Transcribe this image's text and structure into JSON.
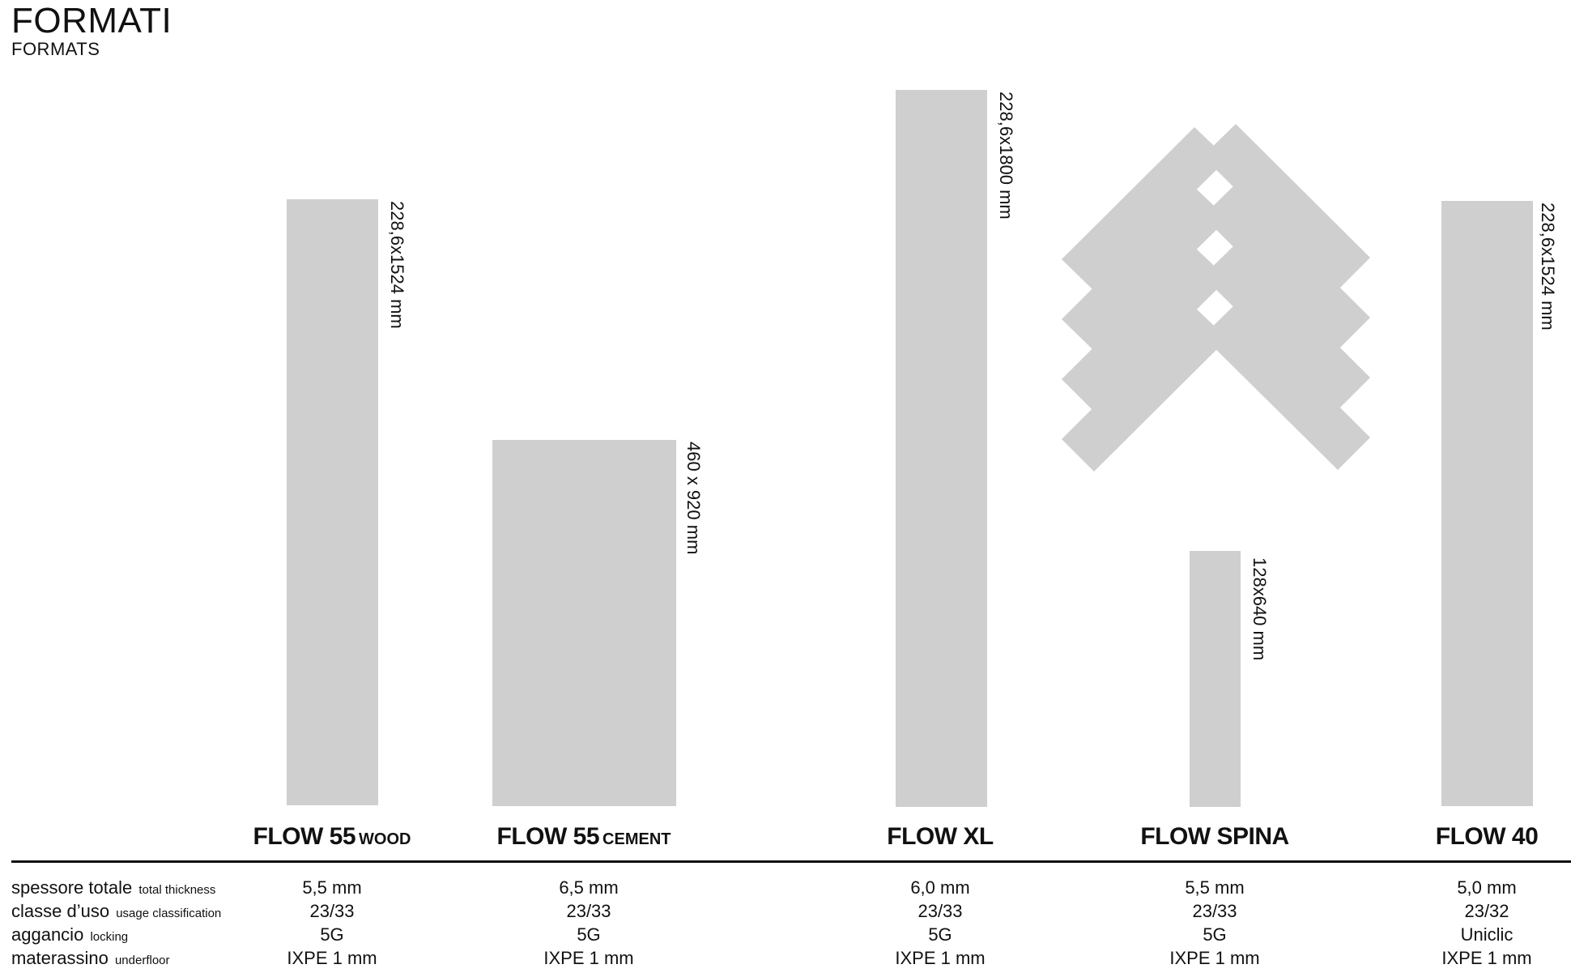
{
  "header": {
    "title": "FORMATI",
    "subtitle": "FORMATS"
  },
  "formats": [
    {
      "name": "FLOW 55",
      "variant": "WOOD",
      "dimension": "228,6x1524 mm",
      "spessore": "5,5 mm",
      "classe": "23/33",
      "aggancio": "5G",
      "materassino": "IXPE 1 mm"
    },
    {
      "name": "FLOW 55",
      "variant": "CEMENT",
      "dimension": "460 x 920 mm",
      "spessore": "6,5 mm",
      "classe": "23/33",
      "aggancio": "5G",
      "materassino": "IXPE 1 mm"
    },
    {
      "name": "FLOW XL",
      "variant": "",
      "dimension": "228,6x1800 mm",
      "spessore": "6,0 mm",
      "classe": "23/33",
      "aggancio": "5G",
      "materassino": "IXPE 1 mm"
    },
    {
      "name": "FLOW SPINA",
      "variant": "",
      "dimension": "128x640 mm",
      "spessore": "5,5 mm",
      "classe": "23/33",
      "aggancio": "5G",
      "materassino": "IXPE 1 mm"
    },
    {
      "name": "FLOW 40",
      "variant": "",
      "dimension": "228,6x1524 mm",
      "spessore": "5,0 mm",
      "classe": "23/32",
      "aggancio": "Uniclic",
      "materassino": "IXPE 1 mm"
    }
  ],
  "specs": {
    "spessore": {
      "label": "spessore totale",
      "label_en": "total thickness"
    },
    "classe": {
      "label": "classe d’uso",
      "label_en": "usage classification"
    },
    "aggancio": {
      "label": "aggancio",
      "label_en": "locking"
    },
    "materassino": {
      "label": "materassino",
      "label_en": "underfloor"
    }
  },
  "colors": {
    "tile": "#cfcfcf",
    "text": "#111111",
    "background": "#ffffff"
  }
}
